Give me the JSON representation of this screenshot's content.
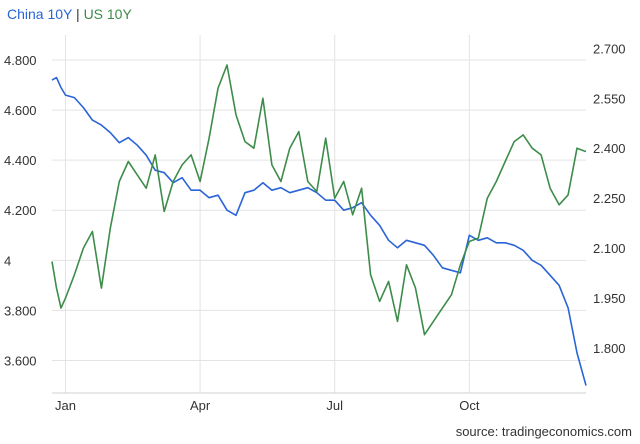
{
  "legend": {
    "series1": "China 10Y",
    "separator": "|",
    "series2": "US 10Y"
  },
  "source": "source: tradingeconomics.com",
  "chart_data": {
    "type": "line",
    "grid": true,
    "x_ticks": [
      {
        "label": "Jan",
        "month": 0.7
      },
      {
        "label": "Apr",
        "month": 3.7
      },
      {
        "label": "Jul",
        "month": 6.7
      },
      {
        "label": "Oct",
        "month": 9.7
      }
    ],
    "xlim": [
      0.4,
      12.3
    ],
    "y_left": {
      "ylim": [
        3.47,
        4.9
      ],
      "ticks": [
        {
          "label": "4.800",
          "value": 4.8
        },
        {
          "label": "4.600",
          "value": 4.6
        },
        {
          "label": "4.400",
          "value": 4.4
        },
        {
          "label": "4.200",
          "value": 4.2
        },
        {
          "label": "4",
          "value": 4.0
        },
        {
          "label": "3.800",
          "value": 3.8
        },
        {
          "label": "3.600",
          "value": 3.6
        }
      ]
    },
    "y_right": {
      "ylim": [
        1.665,
        2.74
      ],
      "ticks": [
        {
          "label": "2.700",
          "value": 2.7
        },
        {
          "label": "2.550",
          "value": 2.55
        },
        {
          "label": "2.400",
          "value": 2.4
        },
        {
          "label": "2.250",
          "value": 2.25
        },
        {
          "label": "2.100",
          "value": 2.1
        },
        {
          "label": "1.950",
          "value": 1.95
        },
        {
          "label": "1.800",
          "value": 1.8
        }
      ]
    },
    "series": [
      {
        "name": "China 10Y",
        "axis": "left",
        "color": "#2a64d6",
        "x": [
          0.4,
          0.5,
          0.6,
          0.7,
          0.9,
          1.1,
          1.3,
          1.5,
          1.7,
          1.9,
          2.1,
          2.3,
          2.5,
          2.7,
          2.9,
          3.1,
          3.3,
          3.5,
          3.7,
          3.9,
          4.1,
          4.3,
          4.5,
          4.7,
          4.9,
          5.1,
          5.3,
          5.5,
          5.7,
          5.9,
          6.1,
          6.3,
          6.5,
          6.7,
          6.9,
          7.1,
          7.3,
          7.5,
          7.7,
          7.9,
          8.1,
          8.3,
          8.5,
          8.7,
          8.9,
          9.1,
          9.3,
          9.5,
          9.7,
          9.9,
          10.1,
          10.3,
          10.5,
          10.7,
          10.9,
          11.1,
          11.3,
          11.5,
          11.7,
          11.9,
          12.1,
          12.3
        ],
        "values": [
          4.72,
          4.73,
          4.69,
          4.66,
          4.65,
          4.61,
          4.56,
          4.54,
          4.51,
          4.47,
          4.49,
          4.46,
          4.42,
          4.36,
          4.35,
          4.31,
          4.33,
          4.28,
          4.28,
          4.25,
          4.26,
          4.2,
          4.18,
          4.27,
          4.28,
          4.31,
          4.28,
          4.29,
          4.27,
          4.28,
          4.29,
          4.27,
          4.24,
          4.24,
          4.2,
          4.21,
          4.23,
          4.18,
          4.14,
          4.08,
          4.05,
          4.08,
          4.07,
          4.06,
          4.02,
          3.97,
          3.96,
          3.95,
          4.1,
          4.08,
          4.09,
          4.07,
          4.07,
          4.06,
          4.04,
          4.0,
          3.98,
          3.94,
          3.9,
          3.81,
          3.63,
          3.5
        ]
      },
      {
        "name": "US 10Y",
        "axis": "right",
        "color": "#3d8c4a",
        "x": [
          0.4,
          0.5,
          0.6,
          0.7,
          0.9,
          1.1,
          1.3,
          1.5,
          1.7,
          1.9,
          2.1,
          2.3,
          2.5,
          2.7,
          2.9,
          3.1,
          3.3,
          3.5,
          3.7,
          3.9,
          4.1,
          4.3,
          4.5,
          4.7,
          4.9,
          5.1,
          5.3,
          5.5,
          5.7,
          5.9,
          6.1,
          6.3,
          6.5,
          6.7,
          6.9,
          7.1,
          7.3,
          7.5,
          7.7,
          7.9,
          8.1,
          8.3,
          8.5,
          8.7,
          8.9,
          9.1,
          9.3,
          9.5,
          9.7,
          9.9,
          10.1,
          10.3,
          10.5,
          10.7,
          10.9,
          11.1,
          11.3,
          11.5,
          11.7,
          11.9,
          12.1,
          12.3
        ],
        "values": [
          2.06,
          1.98,
          1.92,
          1.95,
          2.02,
          2.1,
          2.15,
          1.98,
          2.16,
          2.3,
          2.36,
          2.32,
          2.28,
          2.38,
          2.21,
          2.3,
          2.35,
          2.38,
          2.3,
          2.43,
          2.58,
          2.65,
          2.5,
          2.42,
          2.4,
          2.55,
          2.35,
          2.3,
          2.4,
          2.45,
          2.3,
          2.27,
          2.43,
          2.25,
          2.3,
          2.2,
          2.28,
          2.02,
          1.94,
          2.0,
          1.88,
          2.05,
          1.98,
          1.84,
          1.88,
          1.92,
          1.96,
          2.05,
          2.12,
          2.13,
          2.25,
          2.3,
          2.36,
          2.42,
          2.44,
          2.4,
          2.38,
          2.28,
          2.23,
          2.26,
          2.4,
          2.39
        ]
      }
    ]
  }
}
